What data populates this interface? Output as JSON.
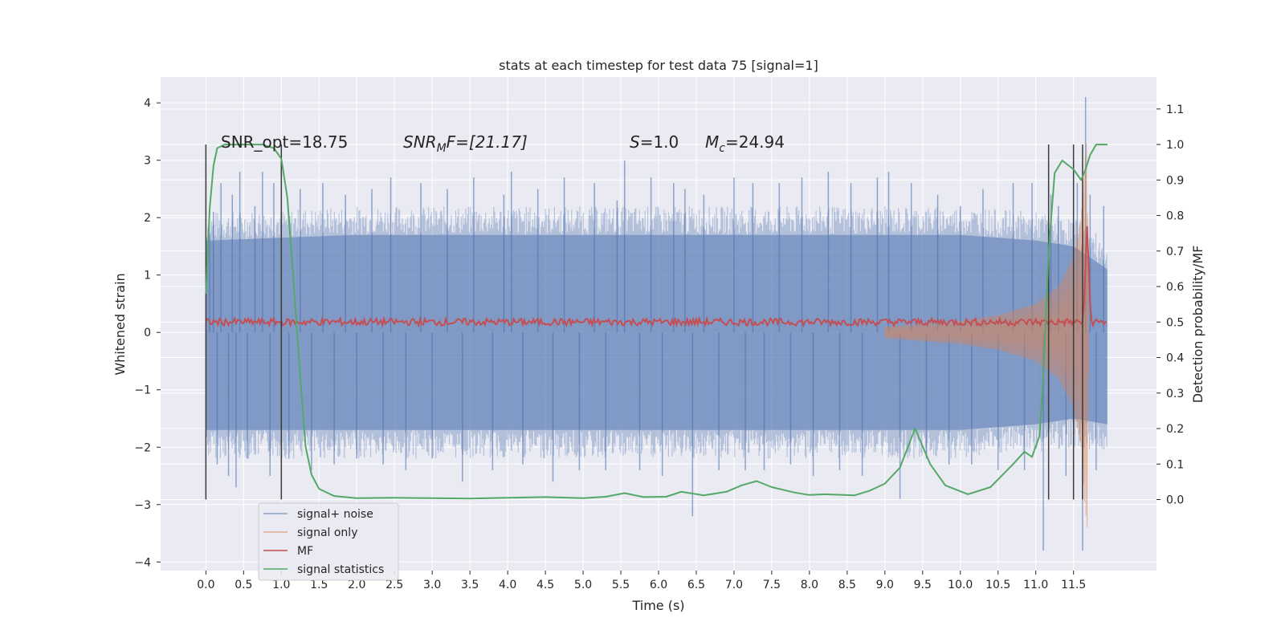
{
  "chart_data": {
    "type": "line",
    "title": "stats at each timestep for test data 75 [signal=1]",
    "xlabel": "Time (s)",
    "ylabel": "Whitened strain",
    "ylabel_right": "Detection probability/MF",
    "xlim": [
      -0.6,
      12.6
    ],
    "ylim": [
      -4.15,
      4.45
    ],
    "ylim_right": [
      -0.2,
      1.19
    ],
    "x_ticks": [
      "0.0",
      "0.5",
      "1.0",
      "1.5",
      "2.0",
      "2.5",
      "3.0",
      "3.5",
      "4.0",
      "4.5",
      "5.0",
      "5.5",
      "6.0",
      "6.5",
      "7.0",
      "7.5",
      "8.0",
      "8.5",
      "9.0",
      "9.5",
      "10.0",
      "10.5",
      "11.0",
      "11.5"
    ],
    "y_ticks": [
      "−4",
      "−3",
      "−2",
      "−1",
      "0",
      "1",
      "2",
      "3",
      "4"
    ],
    "y_ticks_right": [
      "0.0",
      "0.1",
      "0.2",
      "0.3",
      "0.4",
      "0.5",
      "0.6",
      "0.7",
      "0.8",
      "0.9",
      "1.0",
      "1.1"
    ],
    "annotations": {
      "snr_opt": "SNR_opt=18.75",
      "snr_mf_prefix": "SNR",
      "snr_mf_sub": "M",
      "snr_mf_suffix": "F=[21.17]",
      "s_var": "S",
      "s_value": "=1.0",
      "mc_var": "M",
      "mc_sub": "c",
      "mc_value": "=24.94"
    },
    "legend": {
      "placement": "lower-left",
      "entries": [
        "signal+ noise",
        "signal only",
        "MF",
        "signal statistics"
      ]
    },
    "colors": {
      "signal_noise": "#4c72b0",
      "signal_only": "#dd8452",
      "mf": "#c44e52",
      "signal_statistics": "#55a868",
      "vlines": "#3a3a3a",
      "background": "#eaeaf2"
    },
    "vertical_lines_x": [
      0.0,
      1.0,
      11.17,
      11.5,
      11.62
    ],
    "series": [
      {
        "name": "signal statistics",
        "axis": "right",
        "x": [
          0.0,
          0.05,
          0.1,
          0.15,
          0.25,
          0.5,
          0.75,
          0.9,
          1.0,
          1.08,
          1.15,
          1.25,
          1.32,
          1.4,
          1.5,
          1.7,
          2.0,
          2.5,
          3.0,
          3.5,
          4.0,
          4.5,
          5.0,
          5.3,
          5.55,
          5.8,
          6.1,
          6.3,
          6.6,
          6.9,
          7.1,
          7.3,
          7.5,
          7.8,
          8.0,
          8.2,
          8.6,
          8.8,
          9.0,
          9.2,
          9.4,
          9.6,
          9.8,
          10.1,
          10.4,
          10.7,
          10.85,
          10.95,
          11.05,
          11.1,
          11.17,
          11.25,
          11.35,
          11.5,
          11.6,
          11.66,
          11.72,
          11.8,
          11.95
        ],
        "values": [
          0.58,
          0.82,
          0.94,
          0.99,
          1.0,
          1.0,
          1.0,
          0.99,
          0.96,
          0.85,
          0.65,
          0.35,
          0.15,
          0.07,
          0.03,
          0.01,
          0.004,
          0.005,
          0.004,
          0.003,
          0.005,
          0.007,
          0.004,
          0.008,
          0.018,
          0.007,
          0.008,
          0.022,
          0.012,
          0.022,
          0.04,
          0.052,
          0.035,
          0.02,
          0.013,
          0.015,
          0.012,
          0.025,
          0.045,
          0.09,
          0.2,
          0.1,
          0.04,
          0.015,
          0.035,
          0.1,
          0.135,
          0.12,
          0.18,
          0.35,
          0.7,
          0.92,
          0.955,
          0.93,
          0.9,
          0.93,
          0.97,
          1.0,
          1.0
        ]
      },
      {
        "name": "signal+ noise",
        "axis": "left",
        "band_x": [
          0.0,
          2.0,
          4.0,
          6.0,
          8.0,
          10.0,
          11.0,
          11.5,
          11.95
        ],
        "band_upper": [
          1.6,
          1.7,
          1.7,
          1.7,
          1.7,
          1.7,
          1.6,
          1.5,
          1.1
        ],
        "band_lower": [
          -1.7,
          -1.7,
          -1.7,
          -1.7,
          -1.7,
          -1.7,
          -1.6,
          -1.5,
          -1.6
        ],
        "spikes": [
          [
            0.05,
            1.7
          ],
          [
            0.1,
            2.1
          ],
          [
            0.15,
            -2.3
          ],
          [
            0.2,
            2.6
          ],
          [
            0.3,
            -2.5
          ],
          [
            0.35,
            2.4
          ],
          [
            0.4,
            -2.7
          ],
          [
            0.45,
            2.8
          ],
          [
            0.55,
            -2.2
          ],
          [
            0.65,
            2.2
          ],
          [
            0.75,
            2.8
          ],
          [
            0.85,
            -2.5
          ],
          [
            0.9,
            2.6
          ],
          [
            1.1,
            -2.2
          ],
          [
            1.25,
            2.5
          ],
          [
            1.4,
            -2.4
          ],
          [
            1.55,
            2.6
          ],
          [
            1.7,
            -2.3
          ],
          [
            1.85,
            2.4
          ],
          [
            2.0,
            -2.2
          ],
          [
            2.2,
            2.5
          ],
          [
            2.35,
            -2.3
          ],
          [
            2.45,
            2.7
          ],
          [
            2.65,
            -2.4
          ],
          [
            2.85,
            2.6
          ],
          [
            3.0,
            -2.2
          ],
          [
            3.2,
            2.5
          ],
          [
            3.4,
            -2.6
          ],
          [
            3.55,
            2.7
          ],
          [
            3.8,
            -2.4
          ],
          [
            3.95,
            2.4
          ],
          [
            4.05,
            2.8
          ],
          [
            4.2,
            -2.3
          ],
          [
            4.4,
            2.5
          ],
          [
            4.6,
            -2.6
          ],
          [
            4.75,
            2.7
          ],
          [
            4.95,
            -2.4
          ],
          [
            5.15,
            2.6
          ],
          [
            5.3,
            -2.4
          ],
          [
            5.45,
            2.3
          ],
          [
            5.55,
            3.0
          ],
          [
            5.75,
            -2.4
          ],
          [
            5.9,
            2.7
          ],
          [
            6.05,
            -2.5
          ],
          [
            6.2,
            2.6
          ],
          [
            6.35,
            2.5
          ],
          [
            6.45,
            -3.2
          ],
          [
            6.6,
            2.4
          ],
          [
            6.8,
            -2.4
          ],
          [
            7.0,
            2.7
          ],
          [
            7.15,
            -2.4
          ],
          [
            7.25,
            2.6
          ],
          [
            7.4,
            -2.4
          ],
          [
            7.6,
            2.6
          ],
          [
            7.75,
            -2.3
          ],
          [
            7.9,
            2.7
          ],
          [
            8.05,
            -2.5
          ],
          [
            8.25,
            2.8
          ],
          [
            8.4,
            -2.4
          ],
          [
            8.55,
            2.6
          ],
          [
            8.7,
            -2.5
          ],
          [
            8.9,
            2.7
          ],
          [
            9.05,
            2.8
          ],
          [
            9.2,
            -2.9
          ],
          [
            9.35,
            2.6
          ],
          [
            9.55,
            -2.2
          ],
          [
            9.7,
            2.4
          ],
          [
            9.85,
            -2.3
          ],
          [
            10.0,
            2.2
          ],
          [
            10.15,
            -2.3
          ],
          [
            10.3,
            2.5
          ],
          [
            10.5,
            -2.4
          ],
          [
            10.7,
            2.6
          ],
          [
            10.85,
            -2.4
          ],
          [
            10.95,
            2.6
          ],
          [
            11.1,
            -3.8
          ],
          [
            11.2,
            2.4
          ],
          [
            11.3,
            2.2
          ],
          [
            11.4,
            -2.5
          ],
          [
            11.55,
            2.6
          ],
          [
            11.62,
            -3.8
          ],
          [
            11.66,
            4.1
          ],
          [
            11.72,
            2.4
          ],
          [
            11.8,
            -2.4
          ],
          [
            11.9,
            2.2
          ]
        ]
      },
      {
        "name": "signal only",
        "axis": "left",
        "envelope_x": [
          9.0,
          10.0,
          10.5,
          11.0,
          11.3,
          11.5,
          11.6,
          11.65,
          11.68,
          11.7
        ],
        "envelope_amp": [
          0.1,
          0.2,
          0.3,
          0.5,
          0.8,
          1.3,
          2.0,
          3.0,
          3.4,
          0.1
        ]
      },
      {
        "name": "MF",
        "axis": "right",
        "base_value": 0.5,
        "peak_x": 11.68,
        "peak_value": 0.77
      }
    ]
  }
}
